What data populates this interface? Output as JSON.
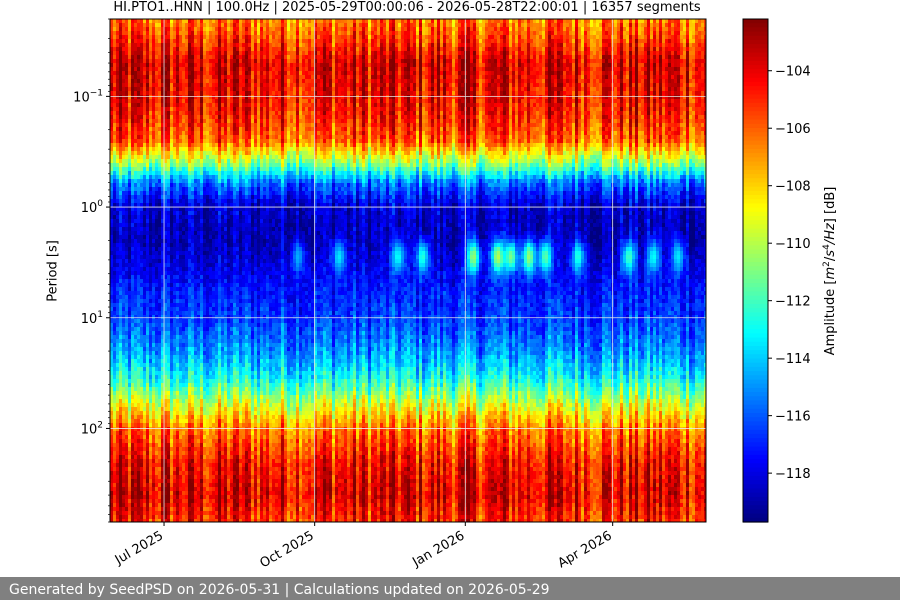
{
  "chart_data": {
    "type": "heatmap",
    "title": "HI.PTO1..HNN | 100.0Hz | 2025-05-29T00:00:06 - 2026-05-28T22:00:01 | 16357 segments",
    "ylabel": "Period [s]",
    "yscale": "log",
    "yrange": [
      0.02,
      700
    ],
    "y_ticks": [
      {
        "value": 0.1,
        "base": "10",
        "exp": "−1"
      },
      {
        "value": 1,
        "base": "10",
        "exp": "0"
      },
      {
        "value": 10,
        "base": "10",
        "exp": "1"
      },
      {
        "value": 100,
        "base": "10",
        "exp": "2"
      }
    ],
    "xrange": [
      "2025-05-29",
      "2026-05-28"
    ],
    "x_ticks": [
      {
        "date": "2025-07-01",
        "label": "Jul 2025"
      },
      {
        "date": "2025-10-01",
        "label": "Oct 2025"
      },
      {
        "date": "2026-01-01",
        "label": "Jan 2026"
      },
      {
        "date": "2026-04-01",
        "label": "Apr 2026"
      }
    ],
    "grid": true,
    "colormap": "jet",
    "colorbar": {
      "label_prefix": "Amplitude [",
      "label_unit_m": "m",
      "label_sup1": "2",
      "label_slash": "/",
      "label_unit_s": "s",
      "label_sup2": "4",
      "label_unit_hz": "/Hz",
      "label_suffix": "] [dB]",
      "range": [
        -119.7,
        -102.2
      ],
      "ticks": [
        -104,
        -106,
        -108,
        -110,
        -112,
        -114,
        -116,
        -118
      ],
      "tick_labels": [
        "−104",
        "−106",
        "−108",
        "−110",
        "−112",
        "−114",
        "−116",
        "−118"
      ]
    },
    "period_profile": [
      {
        "period": 0.02,
        "db": -106.5
      },
      {
        "period": 0.03,
        "db": -105.5
      },
      {
        "period": 0.05,
        "db": -103.8
      },
      {
        "period": 0.09,
        "db": -104.2
      },
      {
        "period": 0.15,
        "db": -104.8
      },
      {
        "period": 0.25,
        "db": -106.0
      },
      {
        "period": 0.4,
        "db": -110.5
      },
      {
        "period": 0.6,
        "db": -115.5
      },
      {
        "period": 1.0,
        "db": -118.3
      },
      {
        "period": 2.0,
        "db": -118.8
      },
      {
        "period": 3.5,
        "db": -118.0
      },
      {
        "period": 6.0,
        "db": -117.0
      },
      {
        "period": 10,
        "db": -116.5
      },
      {
        "period": 20,
        "db": -115.0
      },
      {
        "period": 35,
        "db": -113.0
      },
      {
        "period": 60,
        "db": -109.5
      },
      {
        "period": 100,
        "db": -106.5
      },
      {
        "period": 200,
        "db": -104.5
      },
      {
        "period": 400,
        "db": -103.8
      },
      {
        "period": 700,
        "db": -105.0
      }
    ],
    "microseism_events": [
      {
        "date": "2025-09-20",
        "db_peak": -114.5
      },
      {
        "date": "2025-10-15",
        "db_peak": -113.5
      },
      {
        "date": "2025-11-20",
        "db_peak": -113.0
      },
      {
        "date": "2025-12-05",
        "db_peak": -112.5
      },
      {
        "date": "2026-01-05",
        "db_peak": -110.5
      },
      {
        "date": "2026-01-20",
        "db_peak": -110.0
      },
      {
        "date": "2026-01-28",
        "db_peak": -111.0
      },
      {
        "date": "2026-02-08",
        "db_peak": -110.5
      },
      {
        "date": "2026-02-18",
        "db_peak": -111.5
      },
      {
        "date": "2026-03-10",
        "db_peak": -112.5
      },
      {
        "date": "2026-04-10",
        "db_peak": -112.0
      },
      {
        "date": "2026-04-25",
        "db_peak": -113.0
      },
      {
        "date": "2026-05-10",
        "db_peak": -113.5
      }
    ]
  },
  "footer": {
    "text": "Generated by SeedPSD on 2026-05-31 | Calculations updated on 2026-05-29"
  }
}
